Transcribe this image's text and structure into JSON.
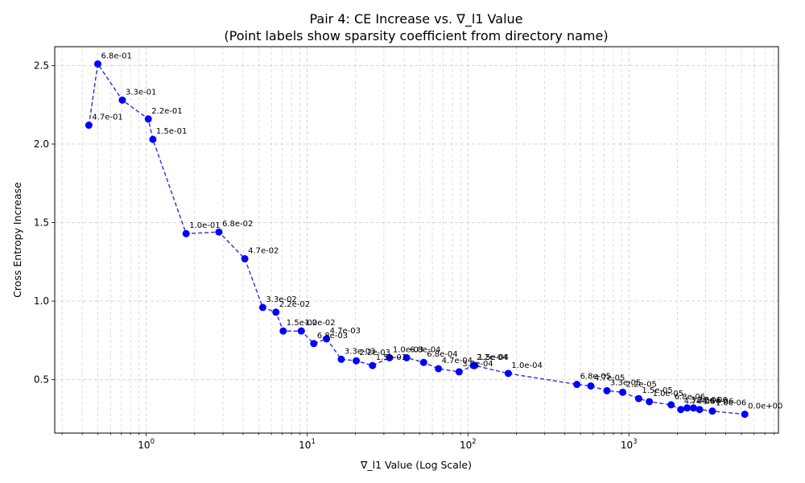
{
  "chart_data": {
    "type": "line",
    "title": "Pair 4: CE Increase vs. ∇_l1 Value",
    "subtitle": "(Point labels show sparsity coefficient from directory name)",
    "xlabel": "∇_l1 Value (Log Scale)",
    "ylabel": "Cross Entropy Increase",
    "xscale": "log",
    "xlim": [
      0.27,
      8500
    ],
    "ylim": [
      0.16,
      2.62
    ],
    "xticks": [
      {
        "value": 1,
        "base": "10",
        "exp": "0"
      },
      {
        "value": 10,
        "base": "10",
        "exp": "1"
      },
      {
        "value": 100,
        "base": "10",
        "exp": "2"
      },
      {
        "value": 1000,
        "base": "10",
        "exp": "3"
      }
    ],
    "yticks": [
      "0.5",
      "1.0",
      "1.5",
      "2.0",
      "2.5"
    ],
    "grid": true,
    "line_color": "#3a3ad8",
    "marker_color": "#0000ff",
    "points": [
      {
        "x": 0.44,
        "y": 2.12,
        "label": "4.7e-01"
      },
      {
        "x": 0.5,
        "y": 2.51,
        "label": "6.8e-01"
      },
      {
        "x": 0.71,
        "y": 2.28,
        "label": "3.3e-01"
      },
      {
        "x": 1.03,
        "y": 2.16,
        "label": "2.2e-01"
      },
      {
        "x": 1.1,
        "y": 2.03,
        "label": "1.5e-01"
      },
      {
        "x": 1.77,
        "y": 1.43,
        "label": "1.0e-01"
      },
      {
        "x": 2.83,
        "y": 1.44,
        "label": "6.8e-02"
      },
      {
        "x": 4.1,
        "y": 1.27,
        "label": "4.7e-02"
      },
      {
        "x": 5.3,
        "y": 0.96,
        "label": "3.3e-02"
      },
      {
        "x": 6.4,
        "y": 0.93,
        "label": "2.2e-02"
      },
      {
        "x": 7.1,
        "y": 0.81,
        "label": "1.5e-02"
      },
      {
        "x": 9.2,
        "y": 0.81,
        "label": "1.0e-02"
      },
      {
        "x": 11.0,
        "y": 0.73,
        "label": "6.8e-03"
      },
      {
        "x": 13.2,
        "y": 0.76,
        "label": "4.7e-03"
      },
      {
        "x": 16.3,
        "y": 0.63,
        "label": "3.3e-03"
      },
      {
        "x": 20.2,
        "y": 0.62,
        "label": "2.2e-03"
      },
      {
        "x": 25.5,
        "y": 0.59,
        "label": "1.5e-03"
      },
      {
        "x": 32.5,
        "y": 0.64,
        "label": "1.0e-03"
      },
      {
        "x": 41.5,
        "y": 0.64,
        "label": "6.8e-04"
      },
      {
        "x": 53.0,
        "y": 0.61,
        "label": "6.8e-04"
      },
      {
        "x": 65.5,
        "y": 0.57,
        "label": "4.7e-04"
      },
      {
        "x": 88.0,
        "y": 0.55,
        "label": "3.3e-04"
      },
      {
        "x": 108.0,
        "y": 0.59,
        "label": "2.2e-04"
      },
      {
        "x": 110.0,
        "y": 0.59,
        "label": "1.5e-04"
      },
      {
        "x": 178.0,
        "y": 0.54,
        "label": "1.0e-04"
      },
      {
        "x": 475.0,
        "y": 0.47,
        "label": "6.8e-05"
      },
      {
        "x": 580.0,
        "y": 0.46,
        "label": "4.7e-05"
      },
      {
        "x": 730.0,
        "y": 0.43,
        "label": "3.3e-05"
      },
      {
        "x": 915.0,
        "y": 0.42,
        "label": "2.2e-05"
      },
      {
        "x": 1150.0,
        "y": 0.38,
        "label": "1.5e-05"
      },
      {
        "x": 1340.0,
        "y": 0.36,
        "label": "1.0e-05"
      },
      {
        "x": 1830.0,
        "y": 0.34,
        "label": "6.8e-06"
      },
      {
        "x": 2100.0,
        "y": 0.31,
        "label": "4.7e-06"
      },
      {
        "x": 2300.0,
        "y": 0.32,
        "label": "3.3e-06"
      },
      {
        "x": 2520.0,
        "y": 0.32,
        "label": "2.2e-06"
      },
      {
        "x": 2750.0,
        "y": 0.31,
        "label": "1.5e-06"
      },
      {
        "x": 3300.0,
        "y": 0.3,
        "label": "1.0e-06"
      },
      {
        "x": 5250.0,
        "y": 0.28,
        "label": "0.0e+00"
      }
    ]
  }
}
